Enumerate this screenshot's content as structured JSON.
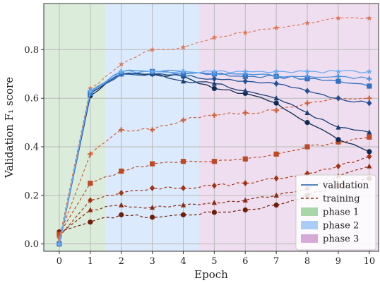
{
  "chart_data": {
    "type": "line",
    "title": "",
    "xlabel": "Epoch",
    "ylabel": "Validation F₁ score",
    "xlim": [
      -0.5,
      10.3
    ],
    "ylim": [
      -0.03,
      0.99
    ],
    "xticks": [
      0,
      1,
      2,
      3,
      4,
      5,
      6,
      7,
      8,
      9,
      10
    ],
    "yticks": [
      0.0,
      0.2,
      0.4,
      0.6,
      0.8
    ],
    "ytick_labels": [
      "0.0",
      "0.2",
      "0.4",
      "0.6",
      "0.8"
    ],
    "grid": true,
    "legend_position": "bottom-right",
    "phases": [
      {
        "label": "phase 1",
        "start": -0.5,
        "end": 1.5,
        "color": "#cfe6cf"
      },
      {
        "label": "phase 2",
        "start": 1.5,
        "end": 4.5,
        "color": "#cfe3fb"
      },
      {
        "label": "phase 3",
        "start": 4.5,
        "end": 10.3,
        "color": "#ead3ea"
      }
    ],
    "legend": {
      "validation_label": "validation",
      "training_label": "training",
      "validation_color": "#1f5aa8",
      "training_color": "#8b2a10"
    },
    "validation_series": [
      {
        "marker": "circle",
        "color": "#0f2b52",
        "x": [
          0,
          1,
          2,
          3,
          4,
          5,
          6,
          7,
          8,
          9,
          10
        ],
        "y": [
          0.0,
          0.61,
          0.7,
          0.7,
          0.69,
          0.64,
          0.62,
          0.58,
          0.5,
          0.43,
          0.38
        ]
      },
      {
        "marker": "triangle",
        "color": "#1a3e73",
        "x": [
          0,
          1,
          2,
          3,
          4,
          5,
          6,
          7,
          8,
          9,
          10
        ],
        "y": [
          0.0,
          0.62,
          0.7,
          0.7,
          0.67,
          0.66,
          0.63,
          0.6,
          0.54,
          0.48,
          0.46
        ]
      },
      {
        "marker": "diamond",
        "color": "#234f94",
        "x": [
          0,
          1,
          2,
          3,
          4,
          5,
          6,
          7,
          8,
          9,
          10
        ],
        "y": [
          0.0,
          0.62,
          0.7,
          0.7,
          0.69,
          0.68,
          0.67,
          0.66,
          0.63,
          0.6,
          0.58
        ]
      },
      {
        "marker": "square",
        "color": "#3172c4",
        "x": [
          0,
          1,
          2,
          3,
          4,
          5,
          6,
          7,
          8,
          9,
          10
        ],
        "y": [
          0.0,
          0.62,
          0.7,
          0.71,
          0.7,
          0.7,
          0.69,
          0.69,
          0.68,
          0.67,
          0.65
        ]
      },
      {
        "marker": "plus",
        "color": "#4b8fdd",
        "x": [
          0,
          1,
          2,
          3,
          4,
          5,
          6,
          7,
          8,
          9,
          10
        ],
        "y": [
          0.0,
          0.63,
          0.71,
          0.71,
          0.71,
          0.7,
          0.7,
          0.69,
          0.69,
          0.69,
          0.68
        ]
      },
      {
        "marker": "star",
        "color": "#6aaaf0",
        "x": [
          0,
          1,
          2,
          3,
          4,
          5,
          6,
          7,
          8,
          9,
          10
        ],
        "y": [
          0.0,
          0.63,
          0.71,
          0.71,
          0.71,
          0.71,
          0.71,
          0.71,
          0.71,
          0.71,
          0.71
        ]
      }
    ],
    "training_series": [
      {
        "marker": "circle",
        "color": "#6e1d0a",
        "x": [
          0,
          1,
          2,
          3,
          4,
          5,
          6,
          7,
          8,
          9,
          10
        ],
        "y": [
          0.05,
          0.09,
          0.12,
          0.11,
          0.12,
          0.13,
          0.14,
          0.16,
          0.2,
          0.24,
          0.27
        ]
      },
      {
        "marker": "triangle",
        "color": "#8a2810",
        "x": [
          0,
          1,
          2,
          3,
          4,
          5,
          6,
          7,
          8,
          9,
          10
        ],
        "y": [
          0.04,
          0.14,
          0.16,
          0.15,
          0.16,
          0.17,
          0.18,
          0.2,
          0.23,
          0.28,
          0.32
        ]
      },
      {
        "marker": "diamond",
        "color": "#a33316",
        "x": [
          0,
          1,
          2,
          3,
          4,
          5,
          6,
          7,
          8,
          9,
          10
        ],
        "y": [
          0.03,
          0.18,
          0.21,
          0.23,
          0.23,
          0.24,
          0.25,
          0.27,
          0.29,
          0.32,
          0.36
        ]
      },
      {
        "marker": "square",
        "color": "#bd4a24",
        "x": [
          0,
          1,
          2,
          3,
          4,
          5,
          6,
          7,
          8,
          9,
          10
        ],
        "y": [
          0.04,
          0.25,
          0.3,
          0.33,
          0.34,
          0.34,
          0.35,
          0.37,
          0.4,
          0.42,
          0.44
        ]
      },
      {
        "marker": "plus",
        "color": "#d0603a",
        "x": [
          0,
          1,
          2,
          3,
          4,
          5,
          6,
          7,
          8,
          9,
          10
        ],
        "y": [
          0.03,
          0.37,
          0.47,
          0.47,
          0.51,
          0.53,
          0.54,
          0.55,
          0.58,
          0.6,
          0.6
        ]
      },
      {
        "marker": "star",
        "color": "#e0785a",
        "x": [
          0,
          1,
          2,
          3,
          4,
          5,
          6,
          7,
          8,
          9,
          10
        ],
        "y": [
          0.02,
          0.64,
          0.74,
          0.8,
          0.81,
          0.85,
          0.87,
          0.89,
          0.91,
          0.93,
          0.93
        ]
      }
    ]
  }
}
